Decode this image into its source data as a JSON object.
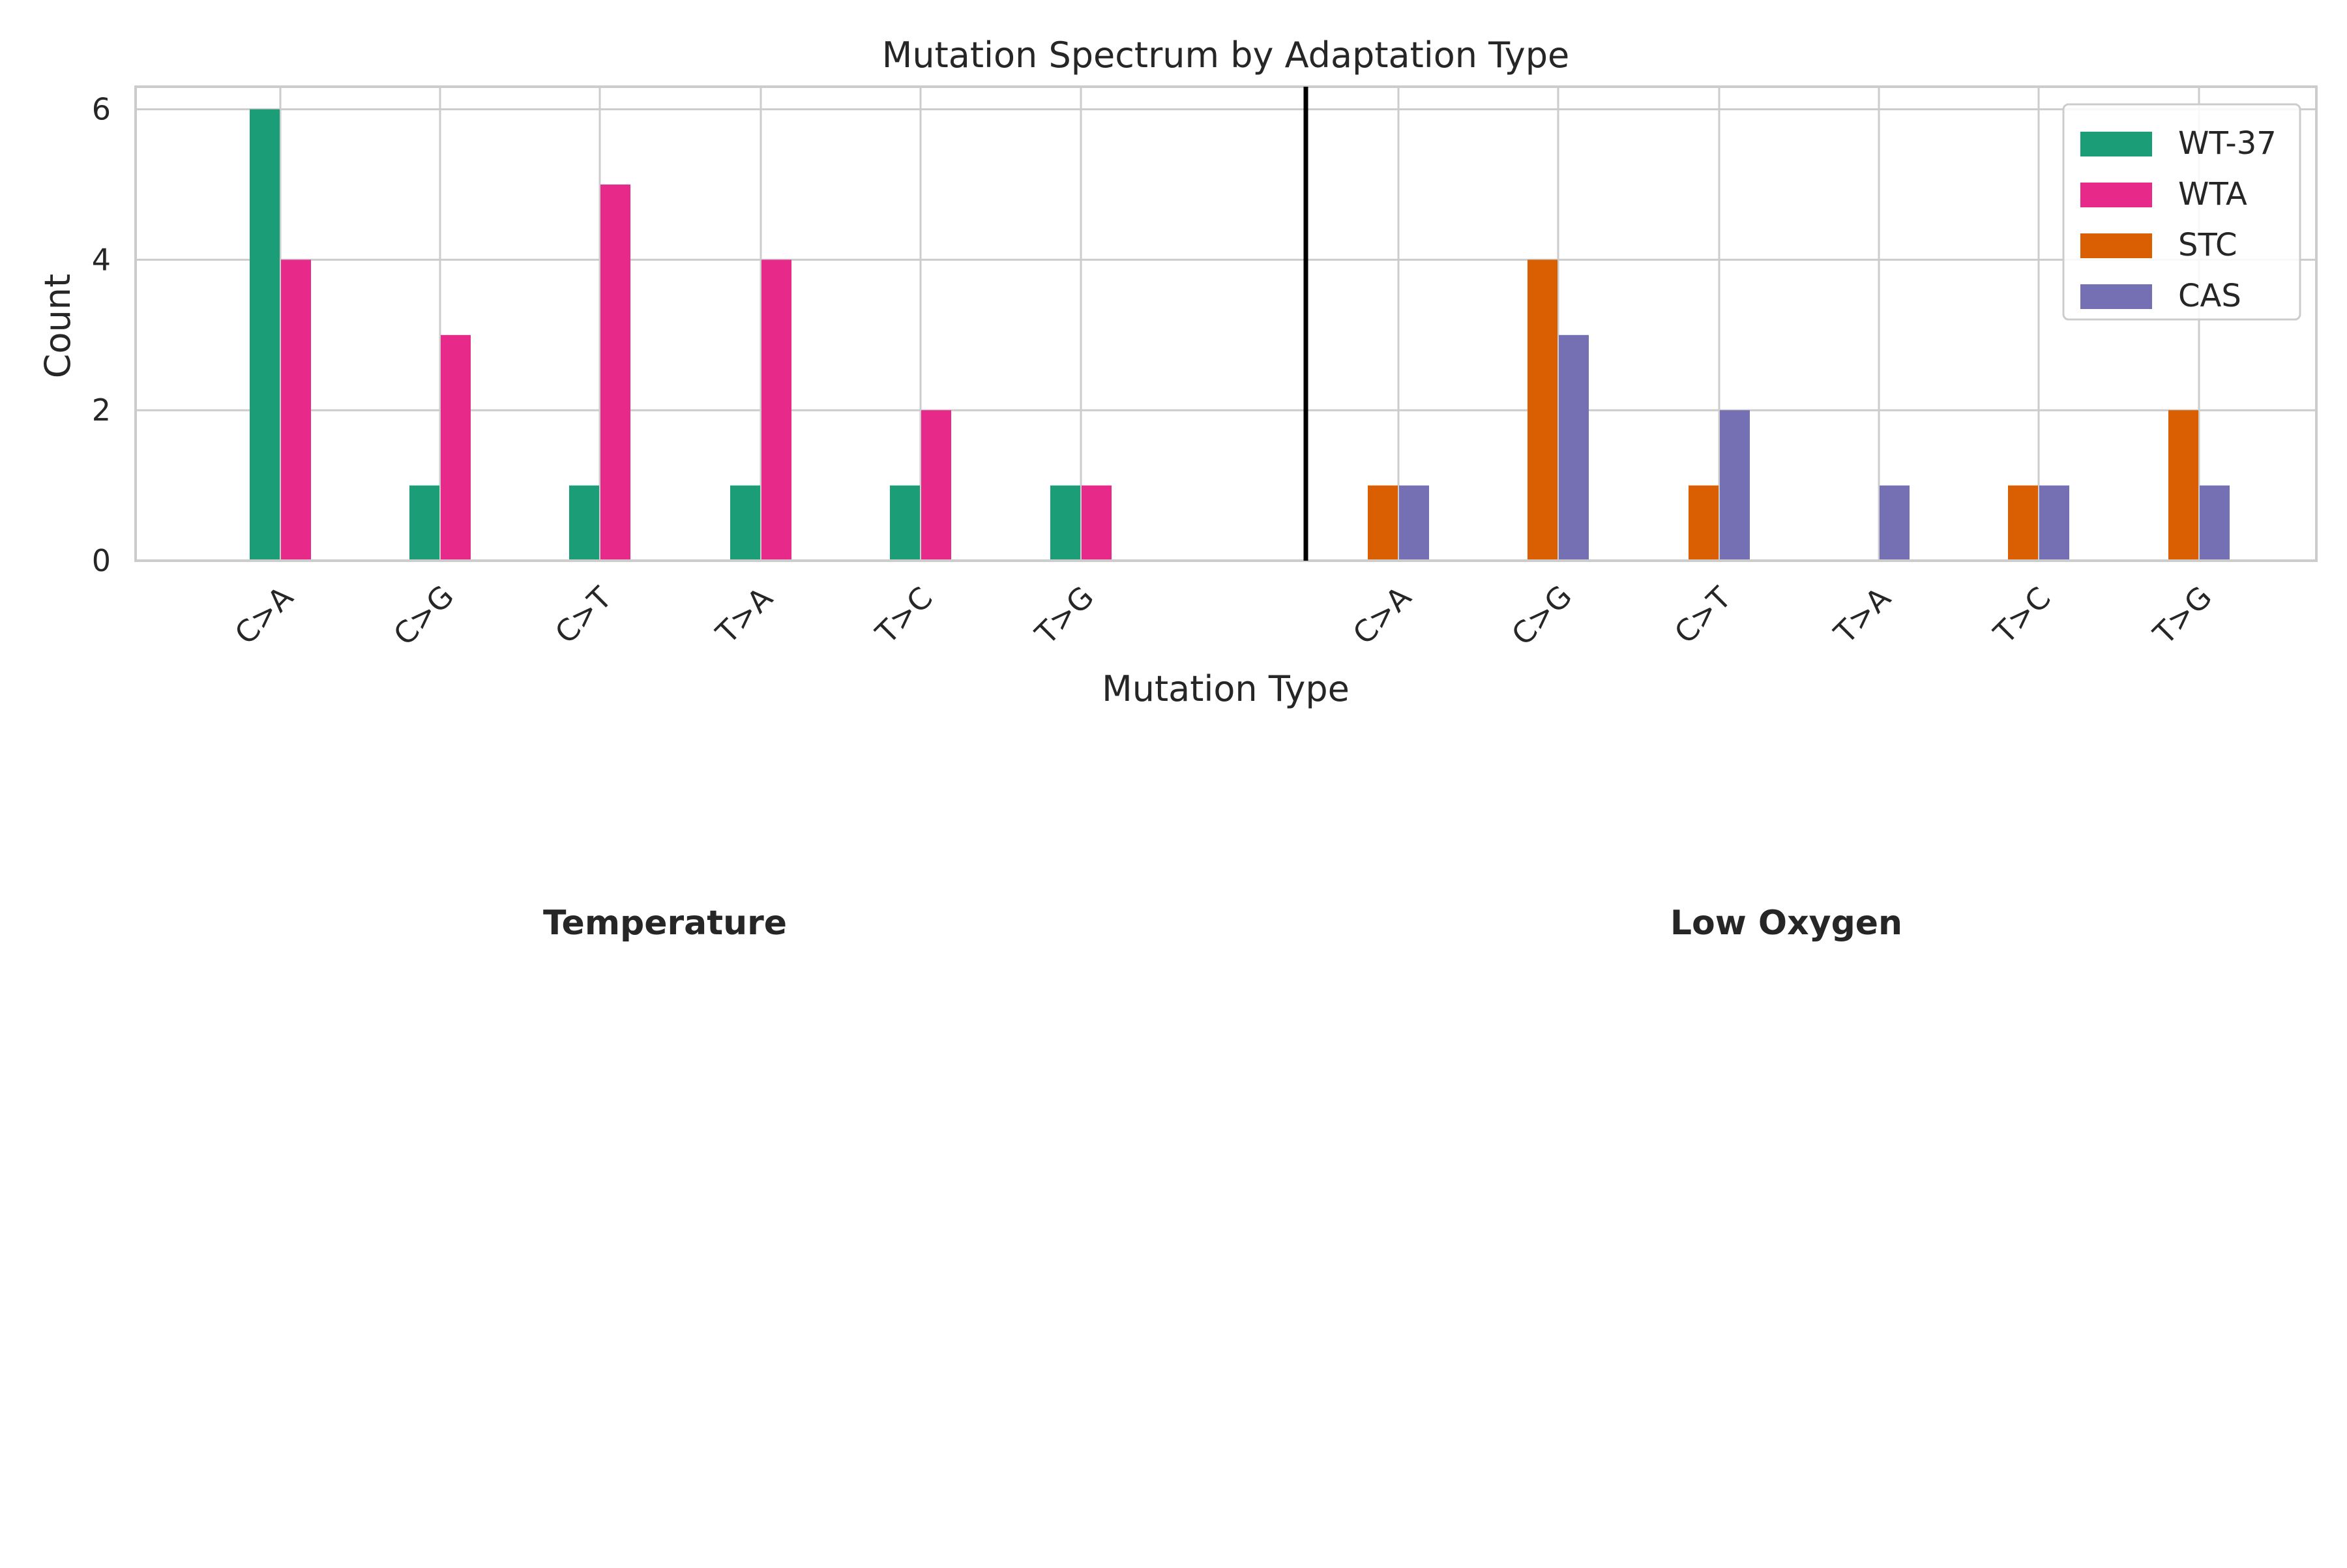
{
  "chart_data": {
    "type": "bar",
    "title": "Mutation Spectrum by Adaptation Type",
    "xlabel": "Mutation Type",
    "ylabel": "Count",
    "ylim": [
      0,
      6.3
    ],
    "yticks": [
      "0",
      "2",
      "4",
      "6"
    ],
    "grid": true,
    "legend_position": "top-right",
    "groups": [
      {
        "label": "Temperature",
        "categories": [
          "C>A",
          "C>G",
          "C>T",
          "T>A",
          "T>C",
          "T>G"
        ],
        "series": [
          {
            "name": "WT-37",
            "color": "#1b9e77",
            "values": [
              6,
              1,
              1,
              1,
              1,
              1
            ]
          },
          {
            "name": "WTA",
            "color": "#e7298a",
            "values": [
              4,
              3,
              5,
              4,
              2,
              1
            ]
          }
        ]
      },
      {
        "label": "Low Oxygen",
        "categories": [
          "C>A",
          "C>G",
          "C>T",
          "T>A",
          "T>C",
          "T>G"
        ],
        "series": [
          {
            "name": "STC",
            "color": "#d95f02",
            "values": [
              1,
              4,
              1,
              0,
              1,
              2
            ]
          },
          {
            "name": "CAS",
            "color": "#7570b3",
            "values": [
              1,
              3,
              2,
              1,
              1,
              1
            ]
          }
        ]
      }
    ],
    "legend": [
      {
        "name": "WT-37",
        "color": "#1b9e77"
      },
      {
        "name": "WTA",
        "color": "#e7298a"
      },
      {
        "name": "STC",
        "color": "#d95f02"
      },
      {
        "name": "CAS",
        "color": "#7570b3"
      }
    ]
  }
}
